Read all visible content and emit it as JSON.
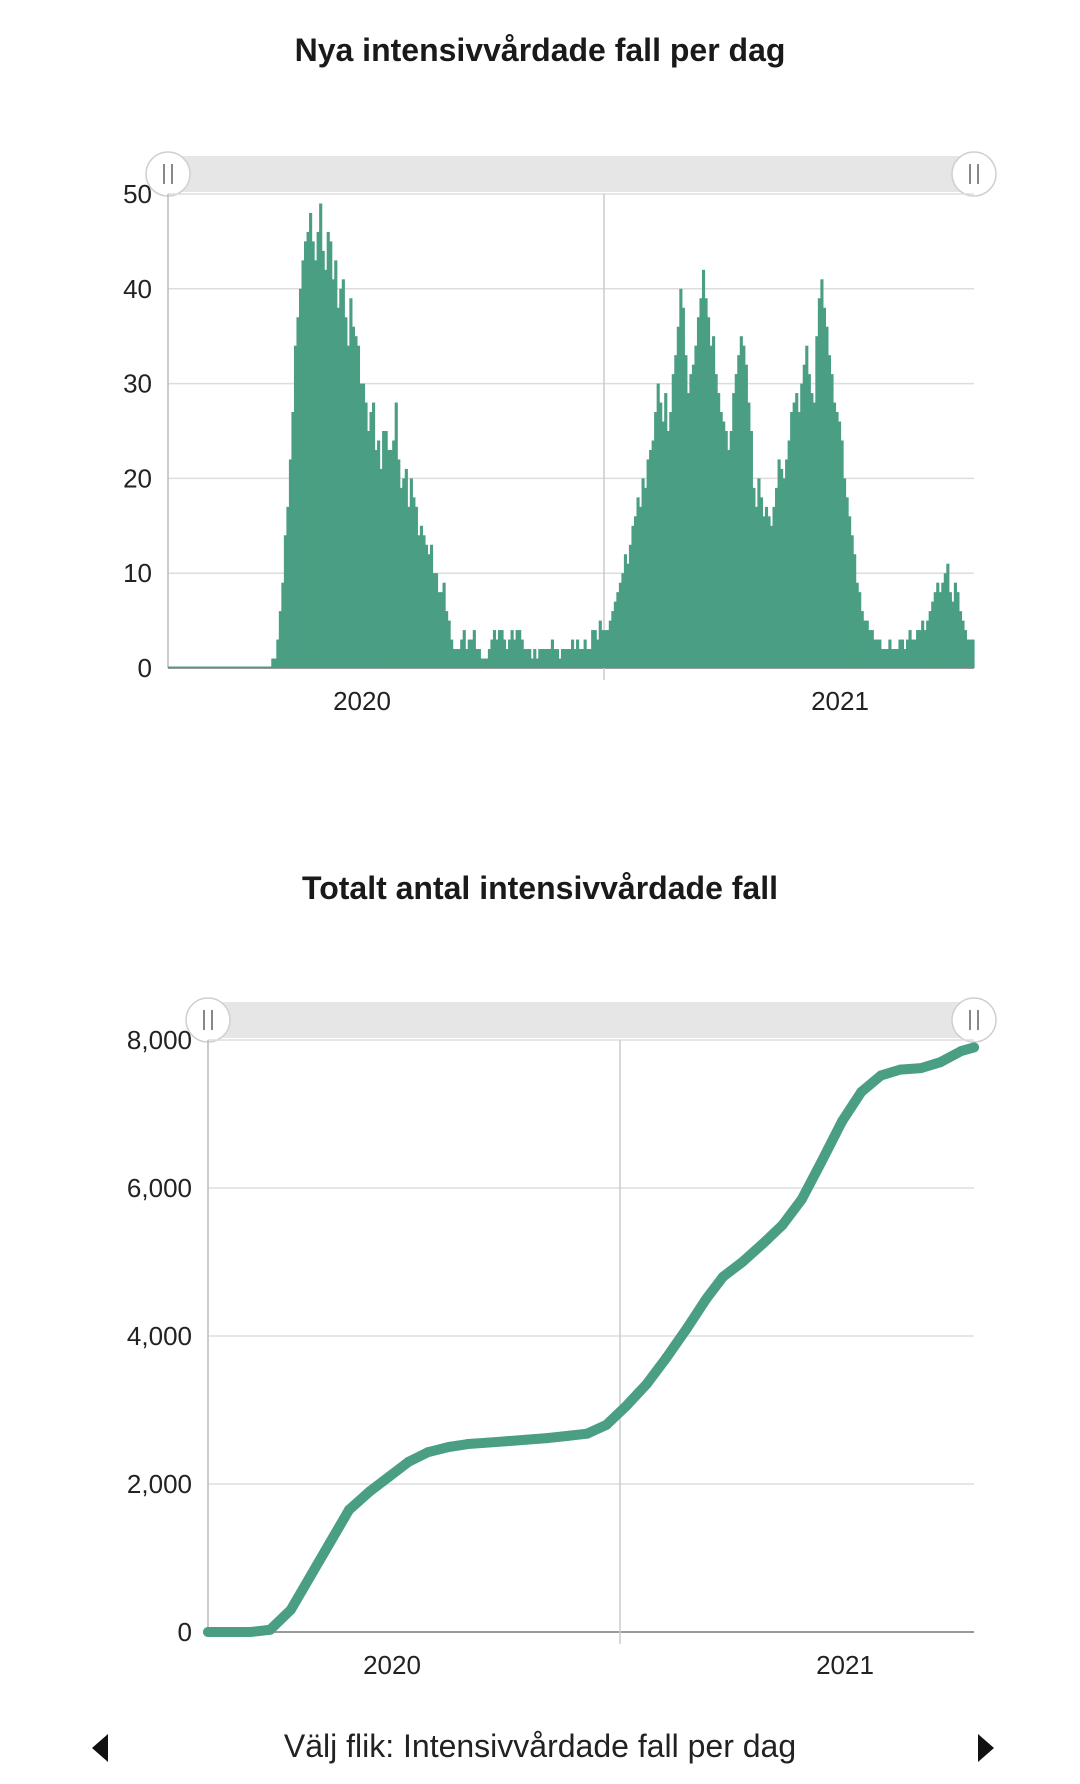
{
  "colors": {
    "series": "#4a9e83",
    "grid": "#dddddd",
    "navigator": "#e6e6e6",
    "axis": "#999999"
  },
  "footer": {
    "label": "Välj flik: Intensivvårdade fall per dag",
    "prev_icon": "caret-left-icon",
    "next_icon": "caret-right-icon"
  },
  "chart_data": [
    {
      "type": "bar",
      "title": "Nya intensivvårdade fall per dag",
      "xlabel": "",
      "ylabel": "",
      "ylim": [
        0,
        50
      ],
      "yticks": [
        "0",
        "10",
        "20",
        "30",
        "40",
        "50"
      ],
      "xticks": [
        "2020",
        "2021"
      ],
      "grid": true,
      "legend": "none",
      "navigator": true,
      "x_start": "2020-02-01",
      "values": [
        0,
        0,
        0,
        0,
        0,
        0,
        0,
        0,
        0,
        0,
        0,
        0,
        0,
        0,
        0,
        0,
        0,
        0,
        0,
        0,
        0,
        0,
        0,
        0,
        0,
        0,
        0,
        0,
        0,
        0,
        0,
        0,
        0,
        0,
        0,
        0,
        0,
        0,
        0,
        0,
        0,
        1,
        1,
        3,
        6,
        9,
        14,
        17,
        22,
        27,
        34,
        37,
        40,
        43,
        45,
        46,
        48,
        45,
        43,
        46,
        49,
        44,
        42,
        46,
        45,
        41,
        43,
        38,
        40,
        41,
        37,
        34,
        39,
        36,
        35,
        34,
        30,
        30,
        28,
        25,
        27,
        28,
        23,
        24,
        21,
        25,
        25,
        23,
        23,
        24,
        28,
        22,
        19,
        20,
        21,
        17,
        20,
        18,
        17,
        14,
        15,
        14,
        13,
        12,
        13,
        10,
        10,
        8,
        8,
        9,
        6,
        5,
        3,
        2,
        2,
        2,
        3,
        4,
        2,
        3,
        3,
        4,
        2,
        2,
        1,
        1,
        1,
        2,
        3,
        4,
        3,
        4,
        4,
        3,
        2,
        3,
        4,
        3,
        4,
        4,
        3,
        2,
        2,
        2,
        1,
        2,
        1,
        2,
        2,
        2,
        2,
        2,
        3,
        2,
        2,
        1,
        2,
        2,
        2,
        2,
        3,
        2,
        3,
        2,
        2,
        3,
        2,
        2,
        4,
        4,
        3,
        5,
        4,
        4,
        4,
        5,
        6,
        7,
        8,
        9,
        10,
        12,
        11,
        13,
        15,
        16,
        18,
        17,
        20,
        19,
        22,
        23,
        24,
        27,
        30,
        28,
        26,
        29,
        25,
        27,
        31,
        33,
        36,
        40,
        38,
        33,
        29,
        31,
        32,
        34,
        37,
        39,
        42,
        39,
        37,
        34,
        35,
        31,
        29,
        27,
        26,
        25,
        23,
        25,
        29,
        31,
        33,
        35,
        34,
        32,
        28,
        25,
        19,
        17,
        20,
        18,
        16,
        17,
        16,
        15,
        17,
        19,
        22,
        21,
        20,
        22,
        24,
        27,
        28,
        29,
        27,
        30,
        32,
        34,
        31,
        29,
        28,
        35,
        39,
        41,
        38,
        36,
        33,
        31,
        28,
        27,
        26,
        24,
        20,
        18,
        16,
        14,
        12,
        9,
        8,
        6,
        5,
        5,
        4,
        4,
        3,
        3,
        3,
        2,
        2,
        2,
        3,
        2,
        2,
        2,
        3,
        3,
        2,
        3,
        4,
        3,
        3,
        4,
        4,
        5,
        4,
        5,
        6,
        7,
        8,
        9,
        8,
        9,
        10,
        11,
        8,
        7,
        9,
        8,
        6,
        5,
        4,
        3,
        3,
        3
      ],
      "note": "48 and 49 peaks spring 2020; 42 and 41 peaks later waves"
    },
    {
      "type": "line",
      "title": "Totalt antal intensivvårdade fall",
      "xlabel": "",
      "ylabel": "",
      "ylim": [
        0,
        8000
      ],
      "yticks": [
        "0",
        "2,000",
        "4,000",
        "6,000",
        "8,000"
      ],
      "xticks": [
        "2020",
        "2021"
      ],
      "grid": true,
      "legend": "none",
      "navigator": true,
      "x": [
        "2020-02-01",
        "2020-03-05",
        "2020-03-20",
        "2020-04-05",
        "2020-04-20",
        "2020-05-05",
        "2020-05-20",
        "2020-06-05",
        "2020-06-20",
        "2020-07-05",
        "2020-07-20",
        "2020-08-05",
        "2020-08-20",
        "2020-09-05",
        "2020-09-20",
        "2020-10-05",
        "2020-10-20",
        "2020-11-05",
        "2020-11-20",
        "2020-12-05",
        "2020-12-20",
        "2021-01-05",
        "2021-01-20",
        "2021-02-05",
        "2021-02-20",
        "2021-03-05",
        "2021-03-20",
        "2021-04-05",
        "2021-04-20",
        "2021-05-05",
        "2021-05-20",
        "2021-06-05",
        "2021-06-20",
        "2021-07-05",
        "2021-07-20",
        "2021-08-05",
        "2021-08-20",
        "2021-09-05",
        "2021-09-15"
      ],
      "values": [
        0,
        0,
        30,
        300,
        750,
        1200,
        1650,
        1900,
        2100,
        2300,
        2430,
        2500,
        2540,
        2560,
        2580,
        2600,
        2620,
        2650,
        2680,
        2800,
        3050,
        3350,
        3700,
        4100,
        4500,
        4800,
        5000,
        5250,
        5500,
        5850,
        6350,
        6900,
        7300,
        7520,
        7600,
        7620,
        7700,
        7850,
        7900
      ]
    }
  ]
}
